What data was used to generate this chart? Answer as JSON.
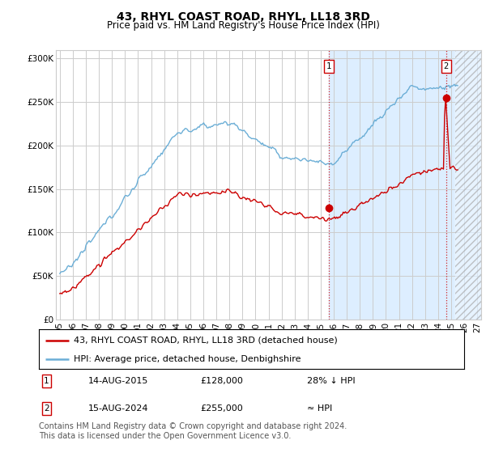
{
  "title": "43, RHYL COAST ROAD, RHYL, LL18 3RD",
  "subtitle": "Price paid vs. HM Land Registry's House Price Index (HPI)",
  "ylim": [
    0,
    310000
  ],
  "yticks": [
    0,
    50000,
    100000,
    150000,
    200000,
    250000,
    300000
  ],
  "ytick_labels": [
    "£0",
    "£50K",
    "£100K",
    "£150K",
    "£200K",
    "£250K",
    "£300K"
  ],
  "x_start_year": 1995,
  "x_end_year": 2027,
  "transaction1_date": 2015.617,
  "transaction1_price": 128000,
  "transaction2_date": 2024.617,
  "transaction2_price": 255000,
  "hpi_color": "#6baed6",
  "price_color": "#cc0000",
  "marker_color": "#cc0000",
  "shade_color": "#ddeeff",
  "future_hatch_color": "#bbbbbb",
  "grid_color": "#cccccc",
  "background_color": "#ffffff",
  "legend_label1": "43, RHYL COAST ROAD, RHYL, LL18 3RD (detached house)",
  "legend_label2": "HPI: Average price, detached house, Denbighshire",
  "annotation1_label": "1",
  "annotation2_label": "2",
  "table_row1": [
    "1",
    "14-AUG-2015",
    "£128,000",
    "28% ↓ HPI"
  ],
  "table_row2": [
    "2",
    "15-AUG-2024",
    "£255,000",
    "≈ HPI"
  ],
  "footer": "Contains HM Land Registry data © Crown copyright and database right 2024.\nThis data is licensed under the Open Government Licence v3.0.",
  "title_fontsize": 10,
  "subtitle_fontsize": 8.5,
  "tick_fontsize": 7.5,
  "legend_fontsize": 8,
  "footer_fontsize": 7
}
